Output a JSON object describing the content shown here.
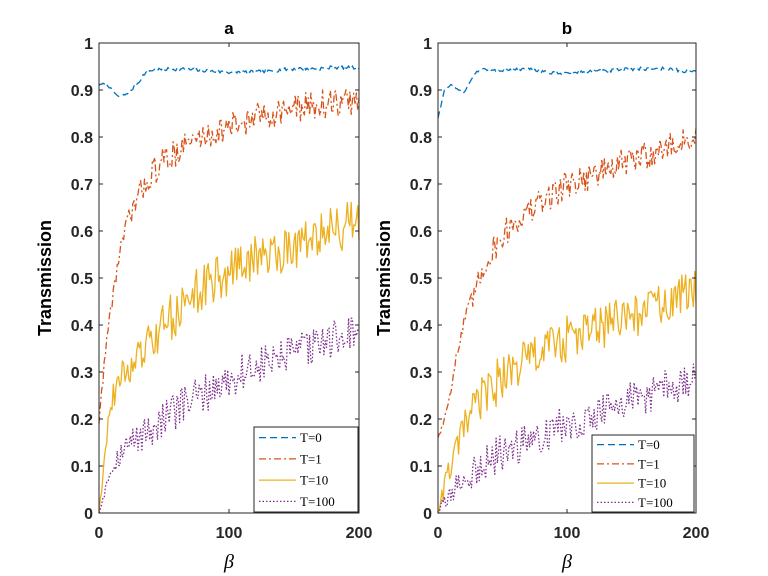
{
  "chart_data": [
    {
      "type": "line",
      "title": "a",
      "xlabel": "β",
      "ylabel": "Transmission",
      "xlim": [
        0,
        200
      ],
      "ylim": [
        0,
        1
      ],
      "xticks": [
        "0",
        "100",
        "200"
      ],
      "yticks": [
        "0",
        "0.1",
        "0.2",
        "0.3",
        "0.4",
        "0.5",
        "0.6",
        "0.7",
        "0.8",
        "0.9",
        "1"
      ],
      "legend": "bottom-right",
      "series": [
        {
          "name": "T=0",
          "color": "#0072BD",
          "style": "dashed",
          "x": [
            0,
            5,
            10,
            15,
            20,
            25,
            30,
            35,
            40,
            50,
            60,
            70,
            80,
            90,
            100,
            110,
            120,
            130,
            140,
            150,
            160,
            170,
            180,
            190,
            200
          ],
          "y": [
            0.91,
            0.915,
            0.9,
            0.885,
            0.89,
            0.9,
            0.915,
            0.935,
            0.942,
            0.944,
            0.945,
            0.943,
            0.942,
            0.939,
            0.938,
            0.938,
            0.938,
            0.939,
            0.943,
            0.945,
            0.946,
            0.946,
            0.948,
            0.948,
            0.947
          ]
        },
        {
          "name": "T=1",
          "color": "#D95319",
          "style": "dashdot",
          "x": [
            0,
            5,
            10,
            15,
            20,
            25,
            30,
            35,
            40,
            50,
            60,
            70,
            80,
            90,
            100,
            110,
            120,
            130,
            140,
            150,
            160,
            170,
            180,
            190,
            200
          ],
          "y": [
            0.19,
            0.35,
            0.45,
            0.54,
            0.6,
            0.64,
            0.67,
            0.7,
            0.72,
            0.75,
            0.77,
            0.79,
            0.8,
            0.81,
            0.82,
            0.83,
            0.84,
            0.85,
            0.855,
            0.86,
            0.865,
            0.87,
            0.87,
            0.875,
            0.875
          ]
        },
        {
          "name": "T=10",
          "color": "#EDB120",
          "style": "solid",
          "x": [
            0,
            5,
            10,
            15,
            20,
            25,
            30,
            35,
            40,
            50,
            60,
            70,
            80,
            90,
            100,
            110,
            120,
            130,
            140,
            150,
            160,
            170,
            180,
            190,
            200
          ],
          "y": [
            0.0,
            0.15,
            0.24,
            0.28,
            0.3,
            0.31,
            0.33,
            0.34,
            0.36,
            0.4,
            0.43,
            0.46,
            0.48,
            0.5,
            0.51,
            0.53,
            0.54,
            0.55,
            0.56,
            0.57,
            0.58,
            0.59,
            0.6,
            0.61,
            0.62
          ]
        },
        {
          "name": "T=100",
          "color": "#7E2F8E",
          "style": "dotted",
          "x": [
            0,
            5,
            10,
            15,
            20,
            25,
            30,
            35,
            40,
            50,
            60,
            70,
            80,
            90,
            100,
            110,
            120,
            130,
            140,
            150,
            160,
            170,
            180,
            190,
            200
          ],
          "y": [
            0.0,
            0.06,
            0.1,
            0.12,
            0.14,
            0.15,
            0.16,
            0.17,
            0.18,
            0.2,
            0.22,
            0.24,
            0.25,
            0.27,
            0.28,
            0.3,
            0.31,
            0.32,
            0.33,
            0.34,
            0.35,
            0.36,
            0.37,
            0.38,
            0.39
          ]
        }
      ]
    },
    {
      "type": "line",
      "title": "b",
      "xlabel": "β",
      "ylabel": "Transmission",
      "xlim": [
        0,
        200
      ],
      "ylim": [
        0,
        1
      ],
      "xticks": [
        "0",
        "100",
        "200"
      ],
      "yticks": [
        "0",
        "0.1",
        "0.2",
        "0.3",
        "0.4",
        "0.5",
        "0.6",
        "0.7",
        "0.8",
        "0.9",
        "1"
      ],
      "legend": "bottom-right",
      "series": [
        {
          "name": "T=0",
          "color": "#0072BD",
          "style": "dashed",
          "x": [
            0,
            5,
            10,
            15,
            20,
            25,
            30,
            35,
            40,
            50,
            60,
            70,
            80,
            90,
            100,
            110,
            120,
            130,
            140,
            150,
            160,
            170,
            180,
            190,
            200
          ],
          "y": [
            0.84,
            0.9,
            0.91,
            0.9,
            0.895,
            0.92,
            0.94,
            0.945,
            0.94,
            0.942,
            0.943,
            0.944,
            0.94,
            0.935,
            0.936,
            0.938,
            0.94,
            0.94,
            0.942,
            0.945,
            0.945,
            0.946,
            0.945,
            0.94,
            0.94
          ]
        },
        {
          "name": "T=1",
          "color": "#D95319",
          "style": "dashdot",
          "x": [
            0,
            5,
            10,
            15,
            20,
            25,
            30,
            35,
            40,
            50,
            60,
            70,
            80,
            90,
            100,
            110,
            120,
            130,
            140,
            150,
            160,
            170,
            180,
            190,
            200
          ],
          "y": [
            0.16,
            0.2,
            0.27,
            0.34,
            0.4,
            0.44,
            0.48,
            0.52,
            0.55,
            0.59,
            0.62,
            0.64,
            0.66,
            0.68,
            0.7,
            0.71,
            0.72,
            0.73,
            0.74,
            0.75,
            0.76,
            0.77,
            0.78,
            0.79,
            0.8
          ]
        },
        {
          "name": "T=10",
          "color": "#EDB120",
          "style": "solid",
          "x": [
            0,
            5,
            10,
            15,
            20,
            25,
            30,
            35,
            40,
            50,
            60,
            70,
            80,
            90,
            100,
            110,
            120,
            130,
            140,
            150,
            160,
            170,
            180,
            190,
            200
          ],
          "y": [
            0.0,
            0.06,
            0.1,
            0.14,
            0.18,
            0.21,
            0.23,
            0.25,
            0.26,
            0.29,
            0.31,
            0.33,
            0.34,
            0.36,
            0.37,
            0.38,
            0.39,
            0.4,
            0.41,
            0.42,
            0.43,
            0.44,
            0.45,
            0.46,
            0.47
          ]
        },
        {
          "name": "T=100",
          "color": "#7E2F8E",
          "style": "dotted",
          "x": [
            0,
            5,
            10,
            15,
            20,
            25,
            30,
            35,
            40,
            50,
            60,
            70,
            80,
            90,
            100,
            110,
            120,
            130,
            140,
            150,
            160,
            170,
            180,
            190,
            200
          ],
          "y": [
            0.0,
            0.02,
            0.04,
            0.06,
            0.07,
            0.08,
            0.09,
            0.1,
            0.11,
            0.13,
            0.14,
            0.15,
            0.17,
            0.18,
            0.19,
            0.2,
            0.21,
            0.22,
            0.23,
            0.24,
            0.25,
            0.26,
            0.27,
            0.27,
            0.28
          ]
        }
      ]
    }
  ]
}
